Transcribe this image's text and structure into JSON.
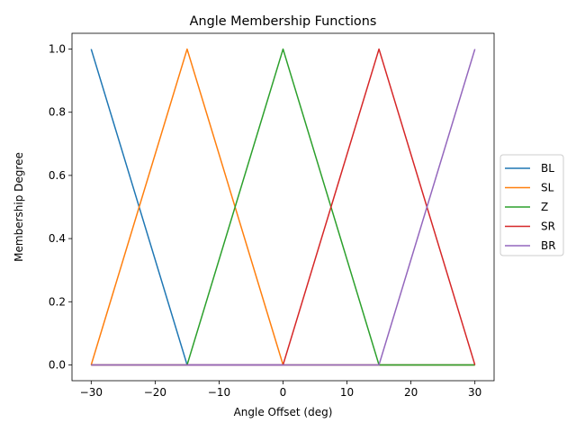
{
  "chart_data": {
    "type": "line",
    "title": "Angle Membership Functions",
    "xlabel": "Angle Offset (deg)",
    "ylabel": "Membership Degree",
    "xlim": [
      -33,
      33
    ],
    "ylim": [
      -0.05,
      1.05
    ],
    "xticks": [
      -30,
      -20,
      -10,
      0,
      10,
      20,
      30
    ],
    "xtick_labels": [
      "−30",
      "−20",
      "−10",
      "0",
      "10",
      "20",
      "30"
    ],
    "yticks": [
      0.0,
      0.2,
      0.4,
      0.6,
      0.8,
      1.0
    ],
    "ytick_labels": [
      "0.0",
      "0.2",
      "0.4",
      "0.6",
      "0.8",
      "1.0"
    ],
    "grid": false,
    "legend_position": "center-right outside",
    "series": [
      {
        "name": "BL",
        "color": "#1f77b4",
        "x": [
          -30,
          -15,
          30
        ],
        "y": [
          1,
          0,
          0
        ]
      },
      {
        "name": "SL",
        "color": "#ff7f0e",
        "x": [
          -30,
          -15,
          0,
          30
        ],
        "y": [
          0,
          1,
          0,
          0
        ]
      },
      {
        "name": "Z",
        "color": "#2ca02c",
        "x": [
          -30,
          -15,
          0,
          15,
          30
        ],
        "y": [
          0,
          0,
          1,
          0,
          0
        ]
      },
      {
        "name": "SR",
        "color": "#d62728",
        "x": [
          -30,
          0,
          15,
          30
        ],
        "y": [
          0,
          0,
          1,
          0
        ]
      },
      {
        "name": "BR",
        "color": "#9467bd",
        "x": [
          -30,
          15,
          30
        ],
        "y": [
          0,
          0,
          1
        ]
      }
    ]
  }
}
